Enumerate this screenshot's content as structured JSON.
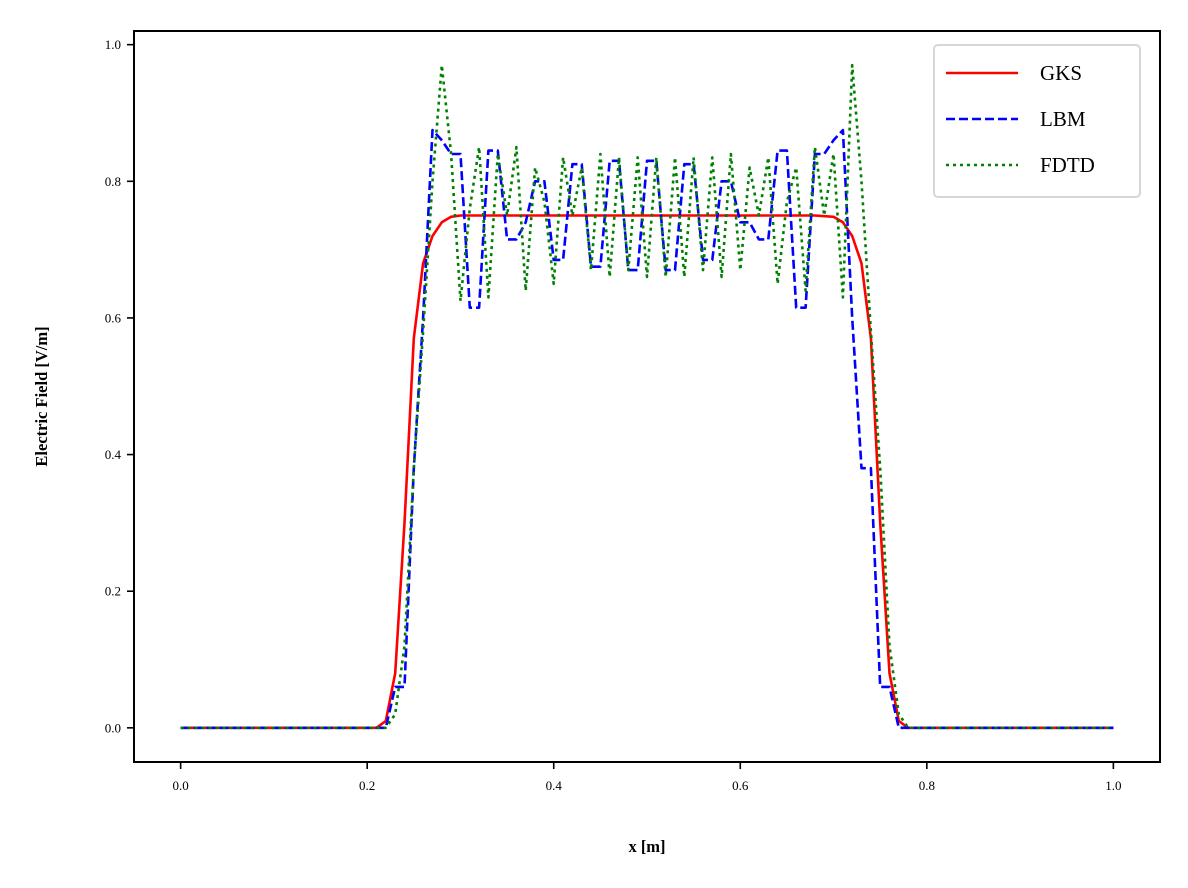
{
  "chart_data": {
    "type": "line",
    "title": "",
    "xlabel": "x [m]",
    "ylabel": "Electric Field [V/m]",
    "xlim": [
      -0.05,
      1.05
    ],
    "ylim": [
      -0.05,
      1.02
    ],
    "xticks": [
      0.0,
      0.2,
      0.4,
      0.6,
      0.8,
      1.0
    ],
    "yticks": [
      0.0,
      0.2,
      0.4,
      0.6,
      0.8,
      1.0
    ],
    "xtick_labels": [
      "0.0",
      "0.2",
      "0.4",
      "0.6",
      "0.8",
      "1.0"
    ],
    "ytick_labels": [
      "0.0",
      "0.2",
      "0.4",
      "0.6",
      "0.8",
      "1.0"
    ],
    "grid": false,
    "legend_position": "top-right",
    "series": [
      {
        "name": "GKS",
        "color": "#ff0000",
        "style": "solid",
        "x": [
          0.0,
          0.21,
          0.22,
          0.23,
          0.24,
          0.25,
          0.26,
          0.27,
          0.28,
          0.29,
          0.3,
          0.32,
          0.35,
          0.4,
          0.5,
          0.6,
          0.65,
          0.68,
          0.7,
          0.71,
          0.72,
          0.73,
          0.74,
          0.75,
          0.76,
          0.77,
          0.78,
          0.79,
          1.0
        ],
        "y": [
          0.0,
          0.0,
          0.01,
          0.08,
          0.3,
          0.57,
          0.68,
          0.72,
          0.74,
          0.748,
          0.75,
          0.75,
          0.75,
          0.75,
          0.75,
          0.75,
          0.75,
          0.75,
          0.748,
          0.74,
          0.72,
          0.68,
          0.57,
          0.3,
          0.08,
          0.01,
          0.0,
          0.0,
          0.0
        ]
      },
      {
        "name": "LBM",
        "color": "#0000ff",
        "style": "dashed",
        "x": [
          0.0,
          0.21,
          0.22,
          0.23,
          0.24,
          0.25,
          0.26,
          0.27,
          0.28,
          0.29,
          0.3,
          0.31,
          0.32,
          0.33,
          0.34,
          0.35,
          0.36,
          0.37,
          0.38,
          0.39,
          0.4,
          0.41,
          0.42,
          0.43,
          0.44,
          0.45,
          0.46,
          0.47,
          0.48,
          0.49,
          0.5,
          0.51,
          0.52,
          0.53,
          0.54,
          0.55,
          0.56,
          0.57,
          0.58,
          0.59,
          0.6,
          0.61,
          0.62,
          0.63,
          0.64,
          0.65,
          0.66,
          0.67,
          0.68,
          0.69,
          0.7,
          0.71,
          0.72,
          0.73,
          0.74,
          0.75,
          0.76,
          0.77,
          1.0
        ],
        "y": [
          0.0,
          0.0,
          0.0,
          0.06,
          0.06,
          0.38,
          0.6,
          0.875,
          0.86,
          0.84,
          0.84,
          0.615,
          0.615,
          0.845,
          0.845,
          0.715,
          0.715,
          0.74,
          0.8,
          0.8,
          0.685,
          0.685,
          0.825,
          0.825,
          0.675,
          0.675,
          0.83,
          0.83,
          0.67,
          0.67,
          0.83,
          0.83,
          0.67,
          0.67,
          0.825,
          0.825,
          0.685,
          0.685,
          0.8,
          0.8,
          0.74,
          0.74,
          0.715,
          0.715,
          0.845,
          0.845,
          0.615,
          0.615,
          0.84,
          0.84,
          0.86,
          0.875,
          0.6,
          0.38,
          0.38,
          0.06,
          0.06,
          0.0,
          0.0
        ]
      },
      {
        "name": "FDTD",
        "color": "#008000",
        "style": "dotted",
        "x": [
          0.0,
          0.21,
          0.22,
          0.23,
          0.24,
          0.25,
          0.26,
          0.27,
          0.28,
          0.29,
          0.3,
          0.31,
          0.32,
          0.33,
          0.34,
          0.35,
          0.36,
          0.37,
          0.38,
          0.39,
          0.4,
          0.41,
          0.42,
          0.43,
          0.44,
          0.45,
          0.46,
          0.47,
          0.48,
          0.49,
          0.5,
          0.51,
          0.52,
          0.53,
          0.54,
          0.55,
          0.56,
          0.57,
          0.58,
          0.59,
          0.6,
          0.61,
          0.62,
          0.63,
          0.64,
          0.65,
          0.66,
          0.67,
          0.68,
          0.69,
          0.7,
          0.71,
          0.72,
          0.73,
          0.74,
          0.75,
          0.76,
          0.77,
          0.78,
          1.0
        ],
        "y": [
          0.0,
          0.0,
          0.0,
          0.02,
          0.12,
          0.38,
          0.58,
          0.8,
          0.97,
          0.84,
          0.625,
          0.76,
          0.85,
          0.63,
          0.84,
          0.75,
          0.85,
          0.64,
          0.82,
          0.77,
          0.65,
          0.835,
          0.75,
          0.82,
          0.67,
          0.84,
          0.66,
          0.835,
          0.67,
          0.835,
          0.66,
          0.835,
          0.66,
          0.835,
          0.66,
          0.835,
          0.67,
          0.835,
          0.66,
          0.84,
          0.67,
          0.82,
          0.75,
          0.835,
          0.65,
          0.77,
          0.82,
          0.64,
          0.85,
          0.75,
          0.84,
          0.63,
          0.97,
          0.8,
          0.58,
          0.38,
          0.12,
          0.02,
          0.0,
          0.0
        ]
      }
    ]
  }
}
